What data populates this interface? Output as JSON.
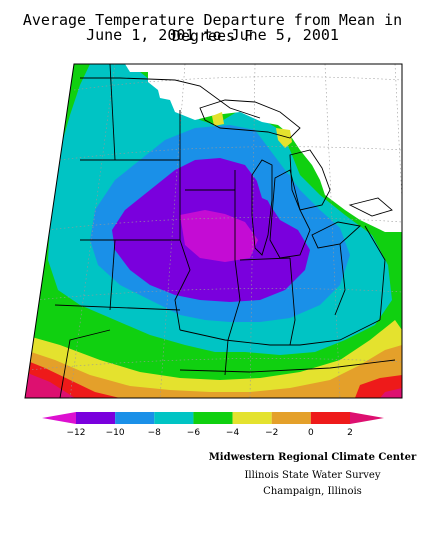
{
  "title": {
    "line1": "Average Temperature Departure from Mean in Degrees F",
    "line2": "June 1, 2001 to June 5, 2001"
  },
  "legend": {
    "bins": [
      {
        "from": null,
        "to": -12,
        "color": "#dd10d0"
      },
      {
        "from": -12,
        "to": -10,
        "color": "#7a00dd"
      },
      {
        "from": -10,
        "to": -8,
        "color": "#1a90e8"
      },
      {
        "from": -8,
        "to": -6,
        "color": "#00c4c4"
      },
      {
        "from": -6,
        "to": -4,
        "color": "#10d010"
      },
      {
        "from": -4,
        "to": -2,
        "color": "#e4e22e"
      },
      {
        "from": -2,
        "to": 0,
        "color": "#e4a02a"
      },
      {
        "from": 0,
        "to": 2,
        "color": "#ee1a1a"
      },
      {
        "from": 2,
        "to": null,
        "color": "#dd1070"
      }
    ],
    "tick_labels": [
      "-12",
      "-10",
      "-8",
      "-6",
      "-4",
      "-2",
      "0",
      "2"
    ]
  },
  "credits": {
    "line1": "Midwestern Regional Climate Center",
    "line2": "Illinois State Water Survey",
    "line3": "Champaign, Illinois"
  },
  "colors": {
    "background": "#ffffff",
    "border": "#000000",
    "boundaries": "#000000",
    "graticule": "#999999"
  }
}
